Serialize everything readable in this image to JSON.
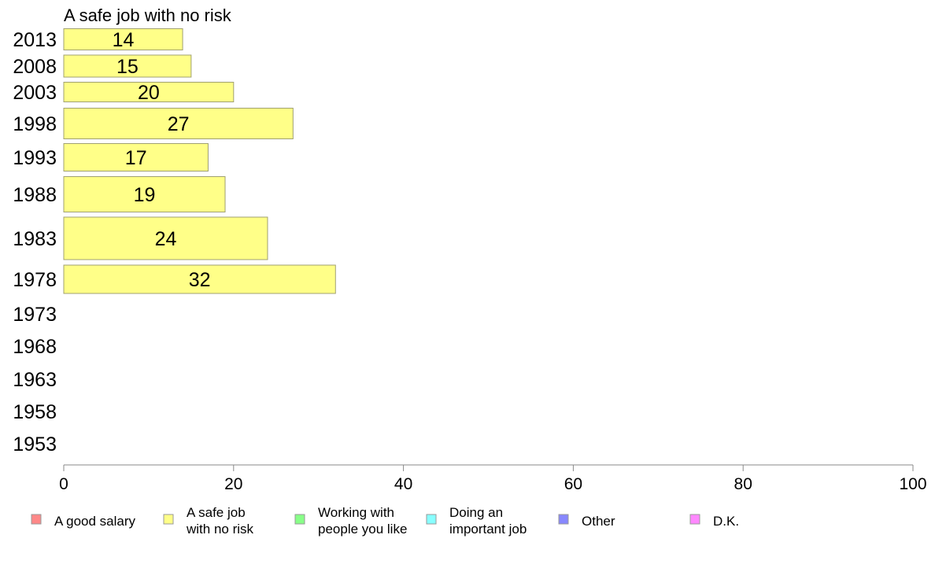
{
  "chart_data": {
    "type": "bar",
    "orientation": "horizontal",
    "title": "A safe job with no risk",
    "categories": [
      "2013",
      "2008",
      "2003",
      "1998",
      "1993",
      "1988",
      "1983",
      "1978",
      "1973",
      "1968",
      "1963",
      "1958",
      "1953"
    ],
    "series": [
      {
        "name": "A safe job with no risk",
        "color": "#ffff88",
        "values": [
          14,
          15,
          20,
          27,
          17,
          19,
          24,
          32,
          null,
          null,
          null,
          null,
          null
        ]
      }
    ],
    "xlim": [
      0,
      100
    ],
    "xticks": [
      0,
      20,
      40,
      60,
      80,
      100
    ],
    "xlabel": "",
    "ylabel": "",
    "grid": false,
    "legend_position": "bottom",
    "legend": [
      {
        "label_lines": [
          "A good salary"
        ],
        "color": "#ff8888"
      },
      {
        "label_lines": [
          "A safe job",
          "with no risk"
        ],
        "color": "#ffff88"
      },
      {
        "label_lines": [
          "Working with",
          "people you like"
        ],
        "color": "#88ff88"
      },
      {
        "label_lines": [
          "Doing an",
          "important job"
        ],
        "color": "#88ffff"
      },
      {
        "label_lines": [
          "Other"
        ],
        "color": "#8888ff"
      },
      {
        "label_lines": [
          "D.K."
        ],
        "color": "#ff88ff"
      }
    ]
  }
}
